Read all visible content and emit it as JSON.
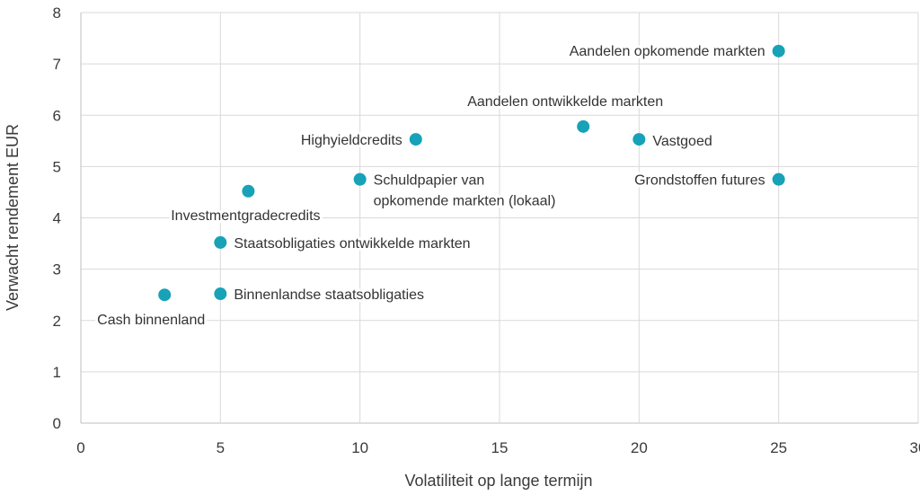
{
  "chart_data": {
    "type": "scatter",
    "xlabel": "Volatiliteit op lange termijn",
    "ylabel": "Verwacht rendement EUR",
    "xlim": [
      0,
      30
    ],
    "ylim": [
      0,
      8
    ],
    "xticks": [
      0,
      5,
      10,
      15,
      20,
      25,
      30
    ],
    "yticks": [
      0,
      1,
      2,
      3,
      4,
      5,
      6,
      7,
      8
    ],
    "grid": true,
    "point_color": "#17a2b8",
    "points": [
      {
        "label": "Aandelen opkomende markten",
        "x": 25,
        "y": 7.25
      },
      {
        "label": "Aandelen ontwikkelde markten",
        "x": 18,
        "y": 5.78
      },
      {
        "label": "Vastgoed",
        "x": 20,
        "y": 5.53
      },
      {
        "label": "Highyieldcredits",
        "x": 12,
        "y": 5.53
      },
      {
        "label": "Grondstoffen futures",
        "x": 25,
        "y": 4.75
      },
      {
        "label": "Schuldpapier van opkomende markten (lokaal)",
        "label_lines": [
          "Schuldpapier van",
          "opkomende markten (lokaal)"
        ],
        "x": 10,
        "y": 4.75
      },
      {
        "label": "Investmentgradecredits",
        "x": 6,
        "y": 4.52
      },
      {
        "label": "Staatsobligaties ontwikkelde markten",
        "x": 5,
        "y": 3.52
      },
      {
        "label": "Binnenlandse staatsobligaties",
        "x": 5,
        "y": 2.52
      },
      {
        "label": "Cash binnenland",
        "x": 3,
        "y": 2.5
      }
    ]
  }
}
